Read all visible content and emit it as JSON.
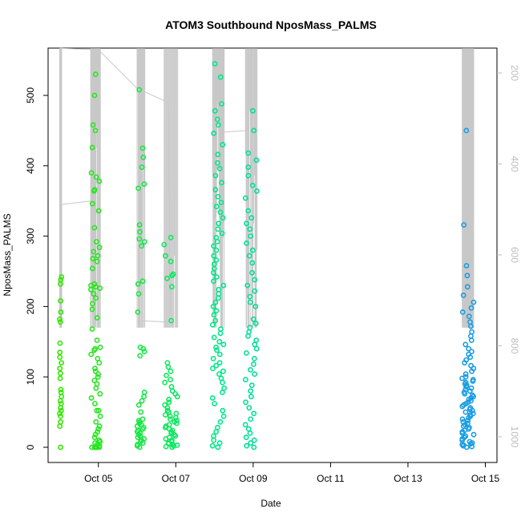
{
  "chart_data": {
    "type": "scatter",
    "title": "ATOM3 Southbound NposMass_PALMS",
    "xlabel": "Date",
    "ylabel": "NposMass_PALMS",
    "x_ticks": [
      "Oct 05",
      "Oct 07",
      "Oct 09",
      "Oct 11",
      "Oct 13",
      "Oct 15"
    ],
    "x_tick_days": [
      5,
      7,
      9,
      11,
      13,
      15
    ],
    "xlim": [
      3.7,
      15.3
    ],
    "ylim": [
      0,
      560
    ],
    "y_ticks": [
      0,
      100,
      200,
      300,
      400,
      500
    ],
    "y2_ticks": [
      200,
      400,
      600,
      800,
      1000
    ],
    "y2lim": [
      1050,
      150
    ],
    "grid": false,
    "point_color_by_time": true,
    "point_colors": [
      "#33e600",
      "#00e690",
      "#1a9be6"
    ],
    "overlay_line_color": "#c8c8c8",
    "series": [
      {
        "x_start": 4.0,
        "x_end": 4.05,
        "y": [
          0,
          30,
          36,
          44,
          48,
          52,
          56,
          62,
          66,
          72,
          78,
          82,
          98,
          105,
          112,
          120,
          128,
          135,
          148,
          178,
          182,
          192,
          208,
          232,
          238,
          242
        ]
      },
      {
        "x_start": 4.8,
        "x_end": 5.05,
        "y": [
          0,
          0,
          0,
          0,
          0,
          0,
          2,
          4,
          6,
          8,
          10,
          14,
          18,
          22,
          26,
          30,
          36,
          44,
          52,
          52,
          62,
          70,
          76,
          84,
          90,
          95,
          100,
          104,
          108,
          112,
          120,
          126,
          132,
          138,
          140,
          142,
          152,
          168,
          184,
          196,
          204,
          212,
          218,
          224,
          226,
          228,
          230,
          232,
          254,
          264,
          268,
          272,
          278,
          284,
          292,
          312,
          336,
          346,
          364,
          366,
          378,
          384,
          390,
          426,
          450,
          458,
          500,
          530
        ]
      },
      {
        "x_start": 6.0,
        "x_end": 6.2,
        "y": [
          0,
          2,
          4,
          6,
          8,
          10,
          12,
          14,
          16,
          18,
          20,
          22,
          24,
          26,
          28,
          30,
          32,
          34,
          36,
          38,
          40,
          50,
          60,
          66,
          72,
          78,
          130,
          136,
          140,
          142,
          192,
          218,
          232,
          236,
          286,
          292,
          296,
          306,
          316,
          368,
          374,
          398,
          412,
          425,
          508
        ]
      },
      {
        "x_start": 6.7,
        "x_end": 7.05,
        "y": [
          0,
          1,
          2,
          3,
          4,
          5,
          6,
          8,
          10,
          12,
          14,
          16,
          18,
          20,
          22,
          24,
          26,
          28,
          30,
          32,
          34,
          36,
          38,
          40,
          42,
          44,
          46,
          48,
          50,
          52,
          56,
          60,
          64,
          68,
          72,
          76,
          80,
          86,
          92,
          96,
          102,
          108,
          114,
          120,
          180,
          228,
          240,
          244,
          246,
          264,
          272,
          288,
          298
        ]
      },
      {
        "x_start": 7.95,
        "x_end": 8.25,
        "y": [
          0,
          2,
          6,
          10,
          16,
          22,
          28,
          36,
          44,
          52,
          62,
          70,
          78,
          84,
          92,
          98,
          104,
          108,
          112,
          116,
          120,
          126,
          132,
          138,
          142,
          146,
          150,
          156,
          162,
          168,
          174,
          180,
          188,
          194,
          200,
          206,
          212,
          218,
          224,
          230,
          236,
          242,
          248,
          254,
          260,
          266,
          272,
          280,
          286,
          292,
          298,
          304,
          310,
          318,
          326,
          334,
          342,
          348,
          356,
          366,
          376,
          386,
          396,
          404,
          416,
          430,
          446,
          458,
          466,
          478,
          488,
          526,
          545
        ]
      },
      {
        "x_start": 8.8,
        "x_end": 9.1,
        "y": [
          0,
          2,
          6,
          10,
          14,
          20,
          26,
          32,
          40,
          48,
          56,
          64,
          72,
          80,
          88,
          96,
          104,
          110,
          118,
          126,
          134,
          140,
          146,
          152,
          158,
          164,
          170,
          176,
          182,
          200,
          206,
          214,
          222,
          230,
          238,
          248,
          262,
          272,
          280,
          290,
          300,
          310,
          318,
          326,
          336,
          354,
          364,
          372,
          386,
          398,
          408,
          418,
          450,
          478
        ]
      },
      {
        "x_start": 14.4,
        "x_end": 14.7,
        "y": [
          0,
          1,
          2,
          3,
          4,
          5,
          6,
          8,
          10,
          12,
          14,
          16,
          18,
          20,
          22,
          24,
          26,
          28,
          30,
          32,
          34,
          36,
          38,
          40,
          42,
          44,
          46,
          48,
          50,
          52,
          54,
          56,
          58,
          60,
          62,
          64,
          66,
          68,
          70,
          72,
          74,
          76,
          78,
          80,
          82,
          84,
          86,
          88,
          90,
          92,
          94,
          96,
          98,
          100,
          104,
          108,
          112,
          116,
          120,
          124,
          128,
          132,
          136,
          140,
          146,
          152,
          158,
          164,
          172,
          178,
          186,
          192,
          198,
          206,
          216,
          228,
          244,
          258,
          316,
          450
        ]
      }
    ],
    "overlay_lines": [
      [
        [
          4.0,
          567
        ],
        [
          4.05,
          180
        ],
        [
          4.05,
          345
        ],
        [
          4.8,
          350
        ]
      ],
      [
        [
          4.0,
          567
        ],
        [
          5.0,
          565
        ],
        [
          6.0,
          510
        ],
        [
          6.8,
          490
        ],
        [
          6.85,
          190
        ]
      ],
      [
        [
          6.0,
          180
        ],
        [
          6.8,
          178
        ]
      ],
      [
        [
          8.1,
          455
        ],
        [
          8.25,
          448
        ],
        [
          8.85,
          450
        ]
      ]
    ]
  }
}
